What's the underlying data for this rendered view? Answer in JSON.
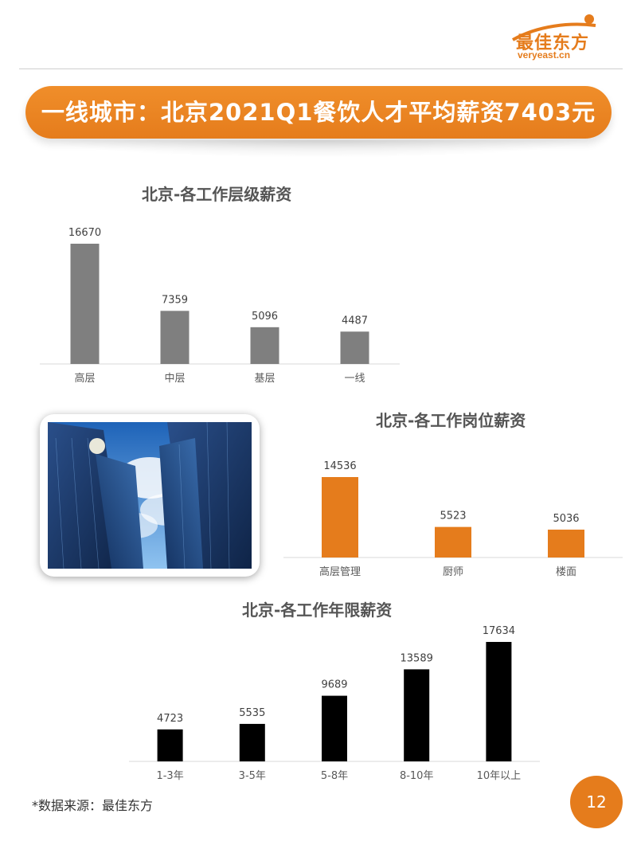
{
  "logo": {
    "name_cn": "最佳东方",
    "name_en": "veryeast.cn",
    "color": "#e57c1c"
  },
  "banner": {
    "title": "一线城市：北京2021Q1餐饮人才平均薪资7403元",
    "color": "#e57c1c"
  },
  "charts": [
    {
      "id": "level",
      "title": "北京-各工作层级薪资",
      "color": "#7f7f7f",
      "categories": [
        "高层",
        "中层",
        "基层",
        "一线"
      ],
      "values": [
        16670,
        7359,
        5096,
        4487
      ]
    },
    {
      "id": "position",
      "title": "北京-各工作岗位薪资",
      "color": "#e57c1c",
      "categories": [
        "高层管理",
        "厨师",
        "楼面"
      ],
      "values": [
        14536,
        5523,
        5036
      ]
    },
    {
      "id": "years",
      "title": "北京-各工作年限薪资",
      "color": "#000000",
      "categories": [
        "1-3年",
        "3-5年",
        "5-8年",
        "8-10年",
        "10年以上"
      ],
      "values": [
        4723,
        5535,
        9689,
        13589,
        17634
      ]
    }
  ],
  "chart_data": [
    {
      "type": "bar",
      "title": "北京-各工作层级薪资",
      "categories": [
        "高层",
        "中层",
        "基层",
        "一线"
      ],
      "values": [
        16670,
        7359,
        5096,
        4487
      ],
      "xlabel": "",
      "ylabel": "",
      "ylim": [
        0,
        17000
      ],
      "grid": false
    },
    {
      "type": "bar",
      "title": "北京-各工作岗位薪资",
      "categories": [
        "高层管理",
        "厨师",
        "楼面"
      ],
      "values": [
        14536,
        5523,
        5036
      ],
      "xlabel": "",
      "ylabel": "",
      "ylim": [
        0,
        17000
      ],
      "grid": false
    },
    {
      "type": "bar",
      "title": "北京-各工作年限薪资",
      "categories": [
        "1-3年",
        "3-5年",
        "5-8年",
        "8-10年",
        "10年以上"
      ],
      "values": [
        4723,
        5535,
        9689,
        13589,
        17634
      ],
      "xlabel": "",
      "ylabel": "",
      "ylim": [
        0,
        18000
      ],
      "grid": false
    }
  ],
  "footer": {
    "source": "*数据来源：最佳东方",
    "page_number": "12"
  }
}
